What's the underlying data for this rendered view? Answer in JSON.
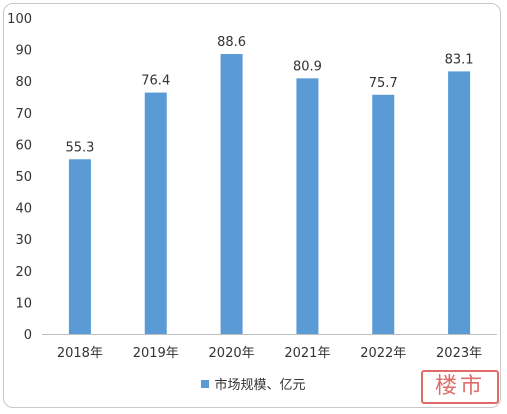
{
  "chart_data": {
    "type": "bar",
    "categories": [
      "2018年",
      "2019年",
      "2020年",
      "2021年",
      "2022年",
      "2023年"
    ],
    "series": [
      {
        "name": "市场规模、亿元",
        "values": [
          55.3,
          76.4,
          88.6,
          80.9,
          75.7,
          83.1
        ],
        "color": "#5b9bd5"
      }
    ],
    "value_labels": [
      "55.3",
      "76.4",
      "88.6",
      "80.9",
      "75.7",
      "83.1"
    ],
    "yticks": [
      "0",
      "10",
      "20",
      "30",
      "40",
      "50",
      "60",
      "70",
      "80",
      "90",
      "100"
    ],
    "ylim": [
      0,
      100
    ],
    "grid": false,
    "legend_position": "bottom"
  },
  "legend": {
    "label": "市场规模、亿元"
  },
  "watermark": {
    "text": "楼市"
  }
}
